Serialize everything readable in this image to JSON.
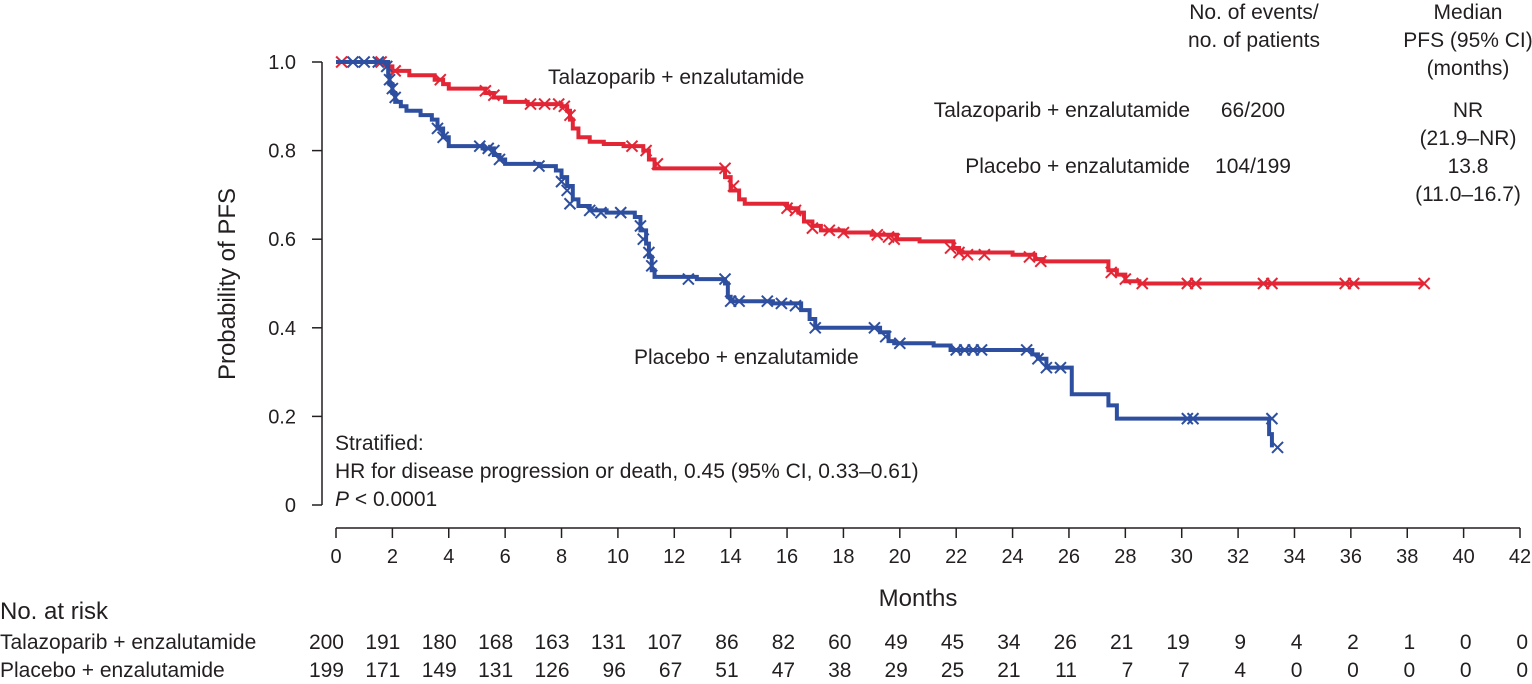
{
  "chart_data": {
    "type": "line",
    "xlabel": "Months",
    "ylabel": "Probability of PFS",
    "xlim": [
      0,
      42
    ],
    "ylim": [
      0,
      1.0
    ],
    "x_ticks": [
      "0",
      "2",
      "4",
      "6",
      "8",
      "10",
      "12",
      "14",
      "16",
      "18",
      "20",
      "22",
      "24",
      "26",
      "28",
      "30",
      "32",
      "34",
      "36",
      "38",
      "40",
      "42"
    ],
    "y_ticks": [
      "0",
      "0.2",
      "0.4",
      "0.6",
      "0.8",
      "1.0"
    ],
    "series": [
      {
        "name": "Talazoparib + enzalutamide",
        "color": "#e32636",
        "steps": [
          [
            0,
            1.0
          ],
          [
            1.7,
            1.0
          ],
          [
            1.8,
            0.99
          ],
          [
            2.0,
            0.98
          ],
          [
            2.6,
            0.97
          ],
          [
            3.5,
            0.96
          ],
          [
            3.8,
            0.95
          ],
          [
            4.0,
            0.94
          ],
          [
            5.3,
            0.93
          ],
          [
            5.6,
            0.92
          ],
          [
            6.0,
            0.91
          ],
          [
            6.8,
            0.905
          ],
          [
            8.0,
            0.9
          ],
          [
            8.2,
            0.89
          ],
          [
            8.3,
            0.87
          ],
          [
            8.4,
            0.85
          ],
          [
            8.6,
            0.83
          ],
          [
            9.0,
            0.82
          ],
          [
            9.5,
            0.815
          ],
          [
            10.2,
            0.81
          ],
          [
            10.9,
            0.8
          ],
          [
            11.1,
            0.78
          ],
          [
            11.3,
            0.76
          ],
          [
            13.7,
            0.76
          ],
          [
            13.8,
            0.74
          ],
          [
            14.0,
            0.71
          ],
          [
            14.3,
            0.69
          ],
          [
            14.5,
            0.68
          ],
          [
            16.0,
            0.67
          ],
          [
            16.4,
            0.66
          ],
          [
            16.6,
            0.64
          ],
          [
            16.9,
            0.63
          ],
          [
            17.2,
            0.62
          ],
          [
            18.0,
            0.615
          ],
          [
            19.0,
            0.61
          ],
          [
            19.9,
            0.6
          ],
          [
            20.7,
            0.595
          ],
          [
            21.9,
            0.58
          ],
          [
            22.1,
            0.57
          ],
          [
            24.0,
            0.565
          ],
          [
            24.8,
            0.555
          ],
          [
            25.1,
            0.55
          ],
          [
            27.4,
            0.53
          ],
          [
            27.7,
            0.52
          ],
          [
            28.0,
            0.505
          ],
          [
            28.5,
            0.5
          ],
          [
            38.6,
            0.5
          ]
        ],
        "censor": [
          [
            0.2,
            1.0
          ],
          [
            1.6,
            1.0
          ],
          [
            2.1,
            0.98
          ],
          [
            3.7,
            0.96
          ],
          [
            5.3,
            0.935
          ],
          [
            5.6,
            0.925
          ],
          [
            6.9,
            0.905
          ],
          [
            7.4,
            0.905
          ],
          [
            7.9,
            0.905
          ],
          [
            8.1,
            0.9
          ],
          [
            8.3,
            0.88
          ],
          [
            10.5,
            0.81
          ],
          [
            11.0,
            0.8
          ],
          [
            11.4,
            0.77
          ],
          [
            13.8,
            0.76
          ],
          [
            14.1,
            0.72
          ],
          [
            16.0,
            0.67
          ],
          [
            16.3,
            0.665
          ],
          [
            16.9,
            0.625
          ],
          [
            17.5,
            0.62
          ],
          [
            18.0,
            0.615
          ],
          [
            19.2,
            0.61
          ],
          [
            19.6,
            0.605
          ],
          [
            19.8,
            0.6
          ],
          [
            21.8,
            0.58
          ],
          [
            22.1,
            0.57
          ],
          [
            22.4,
            0.565
          ],
          [
            23.0,
            0.565
          ],
          [
            24.6,
            0.56
          ],
          [
            25.0,
            0.55
          ],
          [
            27.5,
            0.525
          ],
          [
            28.0,
            0.51
          ],
          [
            28.6,
            0.5
          ],
          [
            30.2,
            0.5
          ],
          [
            30.5,
            0.5
          ],
          [
            32.9,
            0.5
          ],
          [
            33.2,
            0.5
          ],
          [
            35.8,
            0.5
          ],
          [
            36.1,
            0.5
          ],
          [
            38.6,
            0.5
          ]
        ]
      },
      {
        "name": "Placebo + enzalutamide",
        "color": "#2e4fa0",
        "steps": [
          [
            0,
            1.0
          ],
          [
            1.8,
            1.0
          ],
          [
            1.85,
            0.97
          ],
          [
            1.9,
            0.95
          ],
          [
            2.0,
            0.93
          ],
          [
            2.1,
            0.91
          ],
          [
            2.3,
            0.9
          ],
          [
            2.5,
            0.89
          ],
          [
            3.0,
            0.88
          ],
          [
            3.4,
            0.87
          ],
          [
            3.6,
            0.85
          ],
          [
            3.8,
            0.83
          ],
          [
            4.0,
            0.81
          ],
          [
            5.2,
            0.805
          ],
          [
            5.6,
            0.79
          ],
          [
            5.8,
            0.78
          ],
          [
            6.0,
            0.77
          ],
          [
            7.2,
            0.765
          ],
          [
            7.8,
            0.755
          ],
          [
            8.0,
            0.74
          ],
          [
            8.2,
            0.72
          ],
          [
            8.4,
            0.69
          ],
          [
            8.6,
            0.675
          ],
          [
            9.0,
            0.665
          ],
          [
            9.6,
            0.66
          ],
          [
            10.6,
            0.65
          ],
          [
            10.8,
            0.62
          ],
          [
            11.0,
            0.59
          ],
          [
            11.1,
            0.56
          ],
          [
            11.2,
            0.53
          ],
          [
            11.3,
            0.515
          ],
          [
            12.8,
            0.51
          ],
          [
            13.8,
            0.5
          ],
          [
            13.9,
            0.47
          ],
          [
            14.0,
            0.46
          ],
          [
            15.5,
            0.455
          ],
          [
            16.5,
            0.44
          ],
          [
            16.8,
            0.42
          ],
          [
            17.0,
            0.4
          ],
          [
            19.3,
            0.39
          ],
          [
            19.6,
            0.37
          ],
          [
            19.8,
            0.365
          ],
          [
            21.2,
            0.36
          ],
          [
            21.8,
            0.35
          ],
          [
            24.7,
            0.34
          ],
          [
            24.9,
            0.33
          ],
          [
            25.2,
            0.31
          ],
          [
            26.1,
            0.25
          ],
          [
            27.4,
            0.225
          ],
          [
            27.7,
            0.195
          ],
          [
            33.1,
            0.195
          ],
          [
            33.1,
            0.16
          ],
          [
            33.2,
            0.13
          ]
        ],
        "censor": [
          [
            0.6,
            1.0
          ],
          [
            1.0,
            1.0
          ],
          [
            1.5,
            1.0
          ],
          [
            1.8,
            0.99
          ],
          [
            1.9,
            0.96
          ],
          [
            2.0,
            0.94
          ],
          [
            2.1,
            0.92
          ],
          [
            3.6,
            0.85
          ],
          [
            3.8,
            0.83
          ],
          [
            5.1,
            0.81
          ],
          [
            5.4,
            0.805
          ],
          [
            5.6,
            0.8
          ],
          [
            5.8,
            0.78
          ],
          [
            7.2,
            0.765
          ],
          [
            8.0,
            0.73
          ],
          [
            8.2,
            0.71
          ],
          [
            8.3,
            0.68
          ],
          [
            9.0,
            0.665
          ],
          [
            9.4,
            0.66
          ],
          [
            10.1,
            0.66
          ],
          [
            10.8,
            0.63
          ],
          [
            10.9,
            0.6
          ],
          [
            11.1,
            0.57
          ],
          [
            11.2,
            0.54
          ],
          [
            12.5,
            0.51
          ],
          [
            13.8,
            0.51
          ],
          [
            14.0,
            0.46
          ],
          [
            14.3,
            0.46
          ],
          [
            15.3,
            0.46
          ],
          [
            15.8,
            0.455
          ],
          [
            16.3,
            0.45
          ],
          [
            17.0,
            0.4
          ],
          [
            19.1,
            0.4
          ],
          [
            19.5,
            0.38
          ],
          [
            20.0,
            0.365
          ],
          [
            22.0,
            0.35
          ],
          [
            22.3,
            0.35
          ],
          [
            22.6,
            0.35
          ],
          [
            22.9,
            0.35
          ],
          [
            24.5,
            0.35
          ],
          [
            24.9,
            0.33
          ],
          [
            25.2,
            0.31
          ],
          [
            25.7,
            0.31
          ],
          [
            30.2,
            0.195
          ],
          [
            30.4,
            0.195
          ],
          [
            33.2,
            0.195
          ],
          [
            33.4,
            0.13
          ]
        ]
      }
    ],
    "annotations": {
      "series_label_1": "Talazoparib + enzalutamide",
      "series_label_2": "Placebo + enzalutamide",
      "stats_1": "Stratified:",
      "stats_2": "HR for disease progression or death, 0.45 (95% CI, 0.33–0.61)",
      "stats_3_italic": "P",
      "stats_3_rest": " < 0.0001"
    },
    "summary_table": {
      "header_events_1": "No. of events/",
      "header_events_2": "no. of patients",
      "header_median_1": "Median",
      "header_median_2": "PFS (95% CI)",
      "header_median_3": "(months)",
      "rows": [
        {
          "label": "Talazoparib + enzalutamide",
          "events": "66/200",
          "median_1": "NR",
          "median_2": "(21.9–NR)"
        },
        {
          "label": "Placebo + enzalutamide",
          "events": "104/199",
          "median_1": "13.8",
          "median_2": "(11.0–16.7)"
        }
      ]
    },
    "at_risk": {
      "title": "No. at risk",
      "rows": [
        {
          "label": "Talazoparib + enzalutamide",
          "values": [
            "200",
            "191",
            "180",
            "168",
            "163",
            "131",
            "107",
            "86",
            "82",
            "60",
            "49",
            "45",
            "34",
            "26",
            "21",
            "19",
            "9",
            "4",
            "2",
            "1",
            "0",
            "0"
          ]
        },
        {
          "label": "Placebo + enzalutamide",
          "values": [
            "199",
            "171",
            "149",
            "131",
            "126",
            "96",
            "67",
            "51",
            "47",
            "38",
            "29",
            "25",
            "21",
            "11",
            "7",
            "7",
            "4",
            "0",
            "0",
            "0",
            "0",
            "0"
          ]
        }
      ]
    }
  }
}
